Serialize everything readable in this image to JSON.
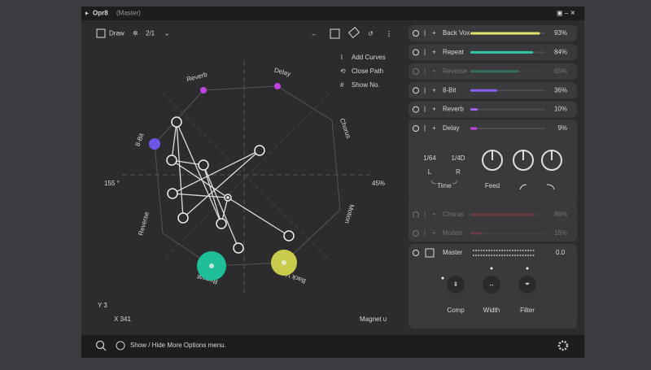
{
  "window": {
    "title": "Opr8",
    "subtitle": "(Master)"
  },
  "toolbar": {
    "draw": "Draw",
    "ratio": "2/1"
  },
  "menu": [
    "Add Curves",
    "Close Path",
    "Show No."
  ],
  "graph": {
    "labels": [
      "Reverb",
      "Delay",
      "Chorus",
      "Motion",
      "Back Vox",
      "Repeat",
      "Reverse",
      "8-Bit"
    ],
    "left": "155 °",
    "right": "45%",
    "y": "Y 3",
    "x": "X 341",
    "magnet": "Magnet"
  },
  "status": "Show / Hide More Options menu.",
  "rows": [
    {
      "name": "Back Vox",
      "value": 93,
      "value_label": "93%",
      "color": "#e4e36b",
      "muted": false
    },
    {
      "name": "Repeat",
      "value": 84,
      "value_label": "84%",
      "color": "#2fc7a8",
      "muted": false
    },
    {
      "name": "Reverse",
      "value": 65,
      "value_label": "65%",
      "color": "#2fc7a8",
      "muted": true
    },
    {
      "name": "8-Bit",
      "value": 36,
      "value_label": "36%",
      "color": "#8c5ef2",
      "muted": false
    },
    {
      "name": "Reverb",
      "value": 10,
      "value_label": "10%",
      "color": "#a35ef2",
      "muted": false
    },
    {
      "name": "Delay",
      "value": 9,
      "value_label": "9%",
      "color": "#c245e0",
      "muted": false
    }
  ],
  "delay": {
    "time_l": "1/64",
    "l": "L",
    "time_r": "1/4D",
    "r": "R",
    "time": "Time",
    "feed": "Feed"
  },
  "rows_after": [
    {
      "name": "Chorus",
      "value": 86,
      "value_label": "86%",
      "color": "#c23a44",
      "muted": true
    },
    {
      "name": "Motion",
      "value": 16,
      "value_label": "16%",
      "color": "#c23a6a",
      "muted": true
    }
  ],
  "master": {
    "name": "Master",
    "value": "0.0",
    "buttons": [
      "Comp",
      "Width",
      "Filter"
    ]
  }
}
